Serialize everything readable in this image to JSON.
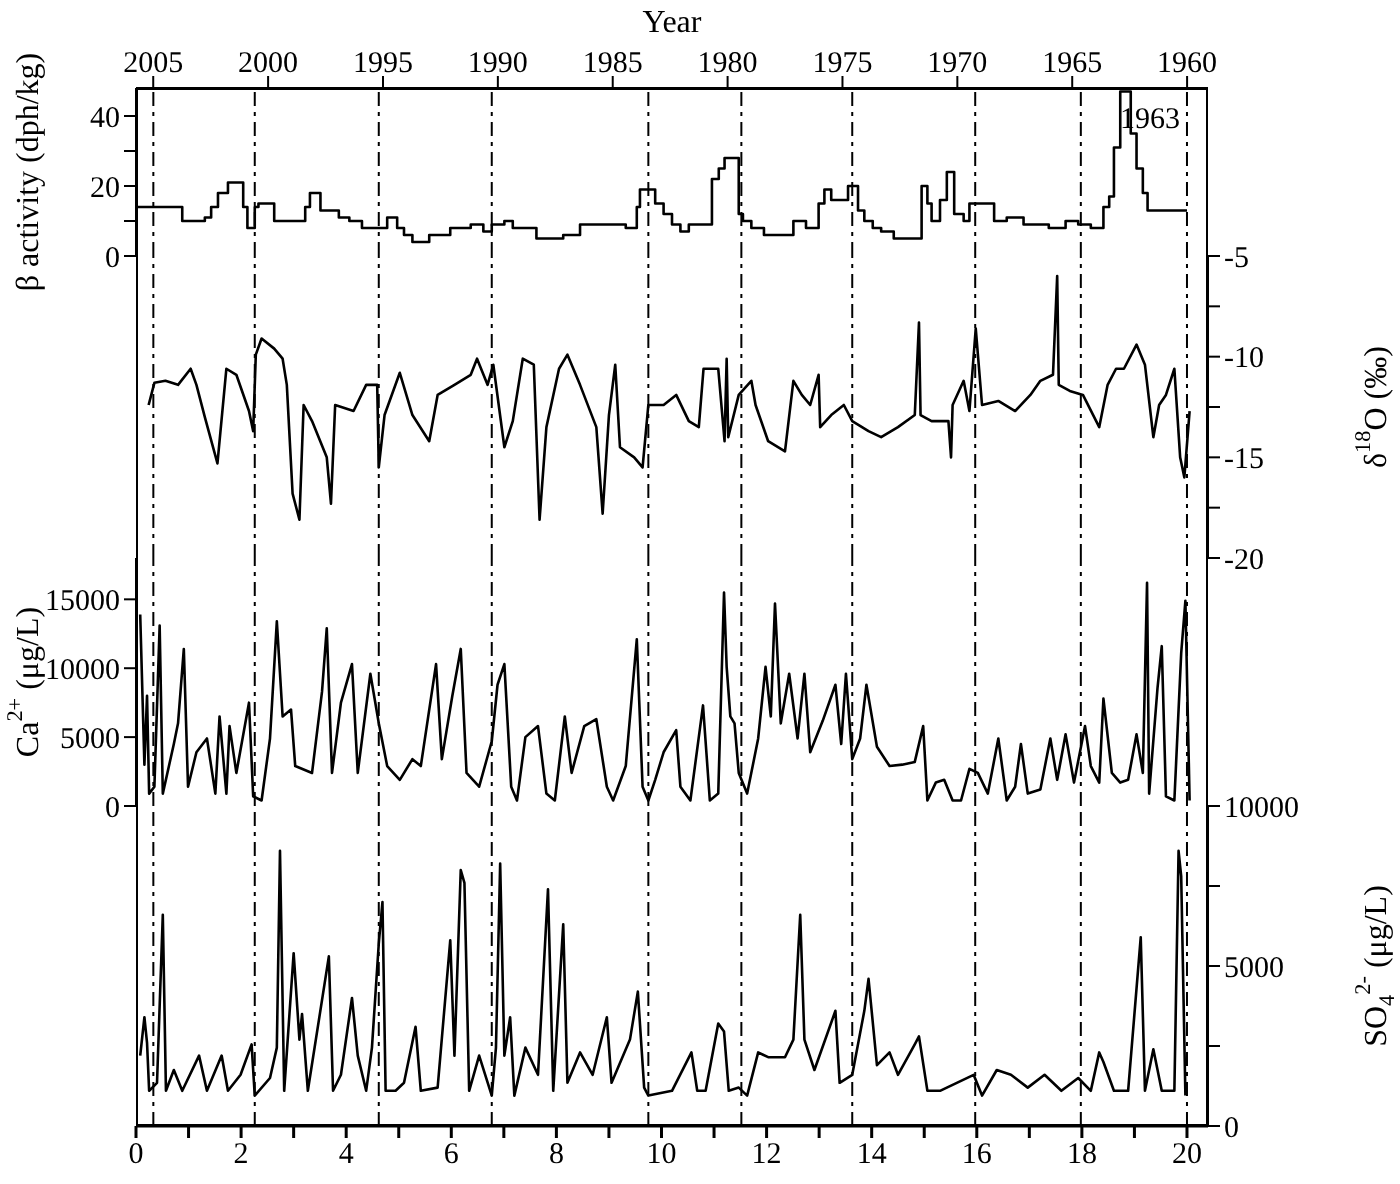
{
  "chart_data": [
    {
      "type": "step",
      "ylabel": "β activity (dph/kg)",
      "x2label": "Year",
      "xlim": [
        0,
        20.4
      ],
      "ylim": [
        0,
        48
      ],
      "yticks": [
        0,
        {
          "value": 10,
          "label": null
        },
        20,
        {
          "value": 30,
          "label": null
        },
        40
      ],
      "x2lim": [
        2005.75,
        1959.09
      ],
      "x2ticks": [
        2005,
        2000,
        1995,
        1990,
        1985,
        1980,
        1975,
        1970,
        1965,
        1960
      ],
      "tick_labels": "y",
      "grid": false,
      "series": [
        {
          "color": "#000000",
          "x": [
            0,
            0.88,
            1.31,
            1.43,
            1.56,
            1.75,
            2.04,
            2.12,
            2.26,
            2.33,
            2.63,
            3.22,
            3.31,
            3.51,
            3.86,
            4.06,
            4.3,
            4.78,
            4.97,
            5.1,
            5.26,
            5.58,
            5.98,
            6.37,
            6.61,
            6.77,
            7.01,
            7.17,
            7.62,
            8.13,
            8.45,
            8.76,
            9.32,
            9.53,
            9.59,
            9.88,
            10.04,
            10.2,
            10.36,
            10.52,
            10.96,
            11.09,
            11.2,
            11.47,
            11.55,
            11.71,
            11.95,
            12.51,
            12.75,
            12.99,
            13.1,
            13.23,
            13.55,
            13.74,
            13.86,
            14.02,
            14.18,
            14.42,
            14.95,
            15.06,
            15.14,
            15.3,
            15.43,
            15.57,
            15.75,
            15.86,
            16.33,
            16.57,
            16.89,
            17.37,
            17.69,
            17.93,
            18.17,
            18.41,
            18.52,
            18.61,
            18.73,
            18.93,
            19.04,
            19.16,
            19.25,
            20.0
          ],
          "values": [
            14,
            10,
            11,
            14,
            18,
            21,
            14,
            8,
            14,
            15,
            10,
            14,
            18,
            13,
            11,
            10,
            8,
            11,
            8,
            6,
            4,
            6,
            8,
            9,
            7,
            9,
            10,
            8,
            5,
            6,
            9,
            9,
            8,
            14,
            19,
            15,
            12,
            9,
            7,
            9,
            22,
            25,
            28,
            12,
            10,
            8,
            6,
            10,
            8,
            15,
            19,
            16,
            20,
            13,
            10,
            8,
            7,
            5,
            20,
            15,
            10,
            16,
            24,
            12,
            10,
            15,
            10,
            11,
            9,
            8,
            10,
            9,
            8,
            14,
            17,
            31,
            47,
            35,
            25,
            18,
            13,
            13
          ]
        }
      ],
      "annotations": [
        "1963"
      ],
      "ref_lines": [
        {
          "axis": "x",
          "value": 0.33,
          "line_style": "dashed"
        },
        {
          "axis": "x",
          "value": 2.26,
          "line_style": "dashed"
        },
        {
          "axis": "x",
          "value": 4.62,
          "line_style": "dashed"
        },
        {
          "axis": "x",
          "value": 6.77,
          "line_style": "dashed"
        },
        {
          "axis": "x",
          "value": 9.75,
          "line_style": "dashed"
        },
        {
          "axis": "x",
          "value": 11.52,
          "line_style": "dashed"
        },
        {
          "axis": "x",
          "value": 13.63,
          "line_style": "dashed"
        },
        {
          "axis": "x",
          "value": 15.97,
          "line_style": "dashed"
        },
        {
          "axis": "x",
          "value": 17.98,
          "line_style": "dashed"
        },
        {
          "axis": "x",
          "value": 20.0,
          "line_style": "dashed"
        }
      ]
    },
    {
      "type": "line",
      "y2label": "δ$^{18}$O (‰)",
      "xlim": [
        0,
        20.4
      ],
      "y2lim": [
        -20,
        -5
      ],
      "y2ticks": [
        -20,
        {
          "value": -17.5,
          "label": null
        },
        -15,
        {
          "value": -12.5,
          "label": null
        },
        -10,
        {
          "value": -7.5,
          "label": null
        },
        -5
      ],
      "tick_labels": "y",
      "grid": false,
      "series": [
        {
          "color": "#000000",
          "axis": "y2",
          "x": [
            0.24,
            0.35,
            0.56,
            0.8,
            1.04,
            1.15,
            1.31,
            1.55,
            1.72,
            1.91,
            2.15,
            2.23,
            2.28,
            2.39,
            2.63,
            2.79,
            2.87,
            2.98,
            3.11,
            3.19,
            3.35,
            3.63,
            3.71,
            3.79,
            4.14,
            4.38,
            4.59,
            4.62,
            4.73,
            5.02,
            5.26,
            5.58,
            5.74,
            6.06,
            6.37,
            6.49,
            6.69,
            6.8,
            7.01,
            7.17,
            7.36,
            7.57,
            7.68,
            7.81,
            8.05,
            8.21,
            8.45,
            8.76,
            8.88,
            9.0,
            9.12,
            9.21,
            9.48,
            9.64,
            9.75,
            10.04,
            10.28,
            10.52,
            10.71,
            10.8,
            11.08,
            11.2,
            11.24,
            11.27,
            11.47,
            11.71,
            11.79,
            12.03,
            12.35,
            12.51,
            12.67,
            12.83,
            12.99,
            13.02,
            13.23,
            13.47,
            13.63,
            13.94,
            14.18,
            14.5,
            14.82,
            14.9,
            14.93,
            15.14,
            15.46,
            15.51,
            15.54,
            15.75,
            15.86,
            15.98,
            16.1,
            16.41,
            16.73,
            17.02,
            17.21,
            17.45,
            17.53,
            17.56,
            17.77,
            18.02,
            18.33,
            18.49,
            18.65,
            18.8,
            19.04,
            19.2,
            19.36,
            19.47,
            19.6,
            19.76,
            19.87,
            19.95,
            20.05
          ],
          "values": [
            -12.4,
            -11.3,
            -11.2,
            -11.4,
            -10.6,
            -11.4,
            -13.0,
            -15.3,
            -10.6,
            -10.9,
            -12.7,
            -13.7,
            -9.9,
            -9.1,
            -9.6,
            -10.1,
            -11.4,
            -16.8,
            -18.1,
            -12.4,
            -13.2,
            -15.0,
            -17.3,
            -12.4,
            -12.7,
            -11.4,
            -11.4,
            -15.5,
            -12.9,
            -10.8,
            -12.9,
            -14.2,
            -11.9,
            -11.4,
            -10.9,
            -10.1,
            -11.4,
            -10.4,
            -14.5,
            -13.2,
            -10.1,
            -10.4,
            -18.1,
            -13.5,
            -10.6,
            -9.9,
            -11.4,
            -13.5,
            -17.8,
            -12.9,
            -10.4,
            -14.5,
            -15.0,
            -15.5,
            -12.4,
            -12.4,
            -11.9,
            -13.2,
            -13.5,
            -10.6,
            -10.6,
            -14.2,
            -10.1,
            -14.0,
            -11.9,
            -11.2,
            -12.4,
            -14.2,
            -14.7,
            -11.2,
            -11.9,
            -12.4,
            -10.9,
            -13.5,
            -12.9,
            -12.4,
            -13.2,
            -13.7,
            -14.0,
            -13.5,
            -12.9,
            -8.3,
            -12.9,
            -13.2,
            -13.2,
            -15.0,
            -12.4,
            -11.2,
            -12.7,
            -8.6,
            -12.4,
            -12.2,
            -12.7,
            -11.9,
            -11.2,
            -10.9,
            -6.0,
            -11.4,
            -11.7,
            -11.9,
            -13.5,
            -11.4,
            -10.6,
            -10.6,
            -9.4,
            -10.4,
            -14.0,
            -12.4,
            -11.9,
            -10.6,
            -15.0,
            -16.0,
            -12.7
          ]
        }
      ],
      "ref_lines": [
        {
          "axis": "x",
          "value": 0.33,
          "line_style": "dashed"
        },
        {
          "axis": "x",
          "value": 2.26,
          "line_style": "dashed"
        },
        {
          "axis": "x",
          "value": 4.62,
          "line_style": "dashed"
        },
        {
          "axis": "x",
          "value": 6.77,
          "line_style": "dashed"
        },
        {
          "axis": "x",
          "value": 9.75,
          "line_style": "dashed"
        },
        {
          "axis": "x",
          "value": 11.52,
          "line_style": "dashed"
        },
        {
          "axis": "x",
          "value": 13.63,
          "line_style": "dashed"
        },
        {
          "axis": "x",
          "value": 15.97,
          "line_style": "dashed"
        },
        {
          "axis": "x",
          "value": 17.98,
          "line_style": "dashed"
        },
        {
          "axis": "x",
          "value": 20.0,
          "line_style": "dashed"
        }
      ]
    },
    {
      "type": "line",
      "ylabel": "Ca$^{2+}$ (μg/L)",
      "xlim": [
        0,
        20.4
      ],
      "ylim": [
        0,
        18000
      ],
      "yticks": [
        0,
        5000,
        10000,
        15000
      ],
      "tick_labels": "y",
      "grid": false,
      "series": [
        {
          "color": "#000000",
          "x": [
            0.08,
            0.16,
            0.21,
            0.25,
            0.35,
            0.45,
            0.51,
            0.72,
            0.8,
            0.91,
            0.99,
            1.15,
            1.35,
            1.51,
            1.59,
            1.72,
            1.78,
            1.91,
            2.15,
            2.23,
            2.39,
            2.55,
            2.68,
            2.79,
            2.95,
            3.03,
            3.35,
            3.54,
            3.63,
            3.73,
            3.9,
            4.11,
            4.22,
            4.46,
            4.62,
            4.78,
            5.02,
            5.26,
            5.42,
            5.71,
            5.82,
            6.02,
            6.18,
            6.29,
            6.53,
            6.77,
            6.88,
            7.01,
            7.14,
            7.25,
            7.41,
            7.65,
            7.81,
            7.97,
            8.16,
            8.29,
            8.53,
            8.76,
            8.96,
            9.08,
            9.32,
            9.53,
            9.64,
            9.75,
            9.88,
            10.04,
            10.28,
            10.36,
            10.55,
            10.79,
            10.92,
            11.08,
            11.19,
            11.24,
            11.31,
            11.39,
            11.47,
            11.63,
            11.84,
            11.98,
            12.08,
            12.16,
            12.27,
            12.43,
            12.59,
            12.72,
            12.83,
            13.07,
            13.31,
            13.42,
            13.51,
            13.63,
            13.78,
            13.9,
            14.1,
            14.34,
            14.58,
            14.82,
            14.98,
            15.06,
            15.22,
            15.38,
            15.54,
            15.7,
            15.86,
            16.02,
            16.21,
            16.41,
            16.57,
            16.73,
            16.84,
            16.97,
            17.21,
            17.4,
            17.53,
            17.69,
            17.85,
            18.06,
            18.17,
            18.33,
            18.41,
            18.57,
            18.73,
            18.88,
            19.04,
            19.16,
            19.24,
            19.28,
            19.44,
            19.52,
            19.6,
            19.76,
            19.89,
            19.97,
            20.05
          ],
          "values": [
            13900,
            3000,
            8000,
            900,
            1400,
            13100,
            900,
            4500,
            6000,
            11400,
            1400,
            3900,
            4900,
            900,
            6500,
            900,
            5800,
            2400,
            7500,
            700,
            400,
            4900,
            13400,
            6500,
            7000,
            2900,
            2400,
            8300,
            12900,
            2400,
            7500,
            10300,
            2400,
            9600,
            6000,
            2900,
            1900,
            3400,
            2900,
            10300,
            3400,
            8000,
            11400,
            2400,
            1400,
            4700,
            8800,
            10300,
            1400,
            400,
            5000,
            5800,
            900,
            400,
            6500,
            2400,
            5800,
            6300,
            1400,
            400,
            2900,
            12100,
            1400,
            400,
            1900,
            3900,
            5500,
            1400,
            400,
            7300,
            400,
            900,
            15500,
            10100,
            6500,
            6000,
            2400,
            900,
            4900,
            10100,
            6500,
            14700,
            6000,
            9600,
            4900,
            9600,
            3900,
            6200,
            8800,
            4500,
            9600,
            3400,
            4900,
            8800,
            4300,
            2900,
            3000,
            3200,
            5800,
            400,
            1700,
            1900,
            400,
            400,
            2700,
            2400,
            900,
            4900,
            400,
            1400,
            4500,
            900,
            1200,
            4900,
            1900,
            5200,
            1700,
            5800,
            2900,
            1700,
            7800,
            2400,
            1700,
            1900,
            5200,
            2400,
            16200,
            900,
            8600,
            11600,
            700,
            400,
            11100,
            14900,
            400
          ]
        }
      ],
      "ref_lines": [
        {
          "axis": "x",
          "value": 0.33,
          "line_style": "dashed"
        },
        {
          "axis": "x",
          "value": 2.26,
          "line_style": "dashed"
        },
        {
          "axis": "x",
          "value": 4.62,
          "line_style": "dashed"
        },
        {
          "axis": "x",
          "value": 6.77,
          "line_style": "dashed"
        },
        {
          "axis": "x",
          "value": 9.75,
          "line_style": "dashed"
        },
        {
          "axis": "x",
          "value": 11.52,
          "line_style": "dashed"
        },
        {
          "axis": "x",
          "value": 13.63,
          "line_style": "dashed"
        },
        {
          "axis": "x",
          "value": 15.97,
          "line_style": "dashed"
        },
        {
          "axis": "x",
          "value": 17.98,
          "line_style": "dashed"
        },
        {
          "axis": "x",
          "value": 20.0,
          "line_style": "dashed"
        }
      ]
    },
    {
      "type": "line",
      "y2label": "SO$_{4}$$^{2-}$ (μg/L)",
      "xlim": [
        0,
        20.4
      ],
      "xticks": [
        0,
        {
          "value": 1,
          "label": null
        },
        2,
        {
          "value": 3,
          "label": null
        },
        4,
        {
          "value": 5,
          "label": null
        },
        6,
        {
          "value": 7,
          "label": null
        },
        8,
        {
          "value": 9,
          "label": null
        },
        10,
        {
          "value": 11,
          "label": null
        },
        12,
        {
          "value": 13,
          "label": null
        },
        14,
        {
          "value": 15,
          "label": null
        },
        16,
        {
          "value": 17,
          "label": null
        },
        18,
        {
          "value": 19,
          "label": null
        },
        20
      ],
      "y2lim": [
        0,
        10000
      ],
      "y2ticks": [
        0,
        {
          "value": 2500,
          "label": null
        },
        5000,
        {
          "value": 7500,
          "label": null
        },
        10000
      ],
      "grid": false,
      "series": [
        {
          "color": "#000000",
          "axis": "y2",
          "x": [
            0.08,
            0.16,
            0.21,
            0.25,
            0.4,
            0.51,
            0.57,
            0.72,
            0.88,
            1.2,
            1.35,
            1.63,
            1.75,
            1.99,
            2.2,
            2.26,
            2.55,
            2.68,
            2.74,
            2.82,
            3.0,
            3.11,
            3.16,
            3.27,
            3.67,
            3.75,
            3.9,
            4.11,
            4.22,
            4.38,
            4.49,
            4.62,
            4.69,
            4.75,
            4.94,
            5.1,
            5.32,
            5.42,
            5.74,
            5.98,
            6.06,
            6.18,
            6.25,
            6.34,
            6.53,
            6.77,
            6.85,
            6.93,
            7.01,
            7.12,
            7.2,
            7.41,
            7.65,
            7.84,
            7.94,
            8.13,
            8.21,
            8.45,
            8.69,
            8.96,
            9.05,
            9.4,
            9.55,
            9.67,
            9.75,
            10.2,
            10.57,
            10.68,
            10.84,
            11.08,
            11.19,
            11.28,
            11.47,
            11.63,
            11.84,
            12.03,
            12.35,
            12.51,
            12.64,
            12.72,
            12.91,
            13.31,
            13.39,
            13.63,
            13.86,
            13.94,
            14.1,
            14.34,
            14.5,
            14.82,
            14.9,
            15.06,
            15.3,
            15.62,
            15.94,
            16.1,
            16.38,
            16.65,
            16.97,
            17.29,
            17.61,
            17.93,
            18.17,
            18.33,
            18.41,
            18.61,
            18.88,
            19.12,
            19.2,
            19.36,
            19.52,
            19.76,
            19.84,
            19.89,
            19.97
          ],
          "values": [
            2200,
            3400,
            2600,
            1100,
            1350,
            6600,
            1100,
            1750,
            1100,
            2200,
            1100,
            2200,
            1100,
            1600,
            2550,
            950,
            1500,
            2450,
            8600,
            1100,
            5400,
            2700,
            3500,
            1100,
            5300,
            1100,
            1600,
            4000,
            2200,
            1100,
            2450,
            5700,
            7000,
            1100,
            1100,
            1350,
            3100,
            1100,
            1200,
            5800,
            2200,
            8000,
            7600,
            1100,
            2200,
            950,
            2450,
            8200,
            2200,
            3400,
            950,
            2450,
            1600,
            7400,
            1100,
            6300,
            1350,
            2300,
            1600,
            3400,
            1350,
            2700,
            4200,
            1200,
            950,
            1100,
            2300,
            1100,
            1100,
            3200,
            2950,
            1100,
            1200,
            950,
            2300,
            2150,
            2150,
            2700,
            6600,
            2700,
            1750,
            3600,
            1350,
            1600,
            3600,
            4600,
            1900,
            2300,
            1600,
            2550,
            2800,
            1100,
            1100,
            1350,
            1600,
            950,
            1750,
            1600,
            1200,
            1600,
            1100,
            1500,
            1100,
            2300,
            2000,
            1100,
            1100,
            5900,
            1100,
            2400,
            1100,
            1100,
            8600,
            7800,
            950
          ]
        }
      ],
      "ref_lines": [
        {
          "axis": "x",
          "value": 0.33,
          "line_style": "dashed"
        },
        {
          "axis": "x",
          "value": 2.26,
          "line_style": "dashed"
        },
        {
          "axis": "x",
          "value": 4.62,
          "line_style": "dashed"
        },
        {
          "axis": "x",
          "value": 6.77,
          "line_style": "dashed"
        },
        {
          "axis": "x",
          "value": 9.75,
          "line_style": "dashed"
        },
        {
          "axis": "x",
          "value": 11.52,
          "line_style": "dashed"
        },
        {
          "axis": "x",
          "value": 13.63,
          "line_style": "dashed"
        },
        {
          "axis": "x",
          "value": 15.97,
          "line_style": "dashed"
        },
        {
          "axis": "x",
          "value": 17.98,
          "line_style": "dashed"
        },
        {
          "axis": "x",
          "value": 20.0,
          "line_style": "dashed"
        }
      ]
    }
  ]
}
